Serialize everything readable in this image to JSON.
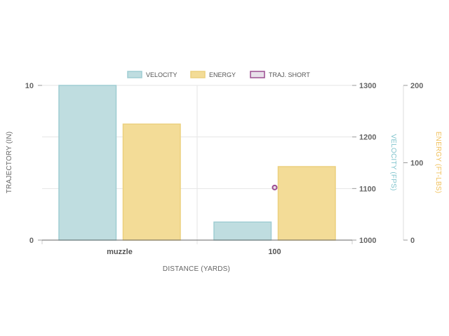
{
  "chart_data": {
    "type": "bar",
    "categories": [
      "muzzle",
      "100"
    ],
    "xlabel": "DISTANCE (YARDS)",
    "legend_position": "top",
    "grid": true,
    "series": [
      {
        "name": "VELOCITY",
        "type": "bar",
        "axis": "velocity",
        "color": "#bfdde0",
        "stroke": "#9fcdd3",
        "values": [
          1300,
          1035
        ]
      },
      {
        "name": "ENERGY",
        "type": "bar",
        "axis": "energy",
        "color": "#f3dc97",
        "stroke": "#ecd07e",
        "values": [
          150,
          95
        ]
      },
      {
        "name": "TRAJ. SHORT",
        "type": "scatter",
        "axis": "trajectory",
        "color": "#e8e0ea",
        "stroke": "#9c4d91",
        "values": [
          null,
          3.4
        ]
      }
    ],
    "axes": {
      "trajectory": {
        "label": "TRAJECTORY (IN)",
        "position": "left",
        "range": [
          0,
          10
        ],
        "ticks": [
          0,
          10
        ],
        "color": "#666666"
      },
      "velocity": {
        "label": "VELOCITY (FPS)",
        "position": "right",
        "range": [
          1000,
          1300
        ],
        "ticks": [
          1000,
          1100,
          1200,
          1300
        ],
        "color": "#7fc3cc"
      },
      "energy": {
        "label": "ENERGY (FT-LBS)",
        "position": "right",
        "range": [
          0,
          200
        ],
        "ticks": [
          0,
          100,
          200
        ],
        "color": "#f0c05a"
      }
    }
  }
}
